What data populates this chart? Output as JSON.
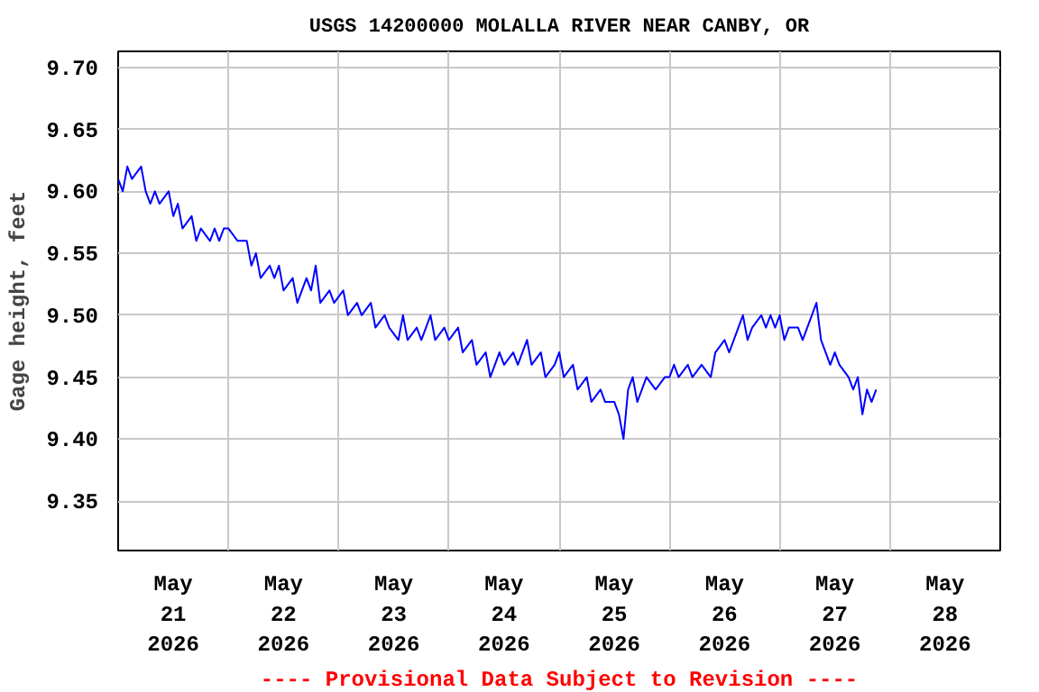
{
  "chart_data": {
    "type": "line",
    "title": "USGS 14200000 MOLALLA RIVER NEAR CANBY, OR",
    "ylabel": "Gage height, feet",
    "annotations": [
      "---- Provisional Data Subject to Revision ----"
    ],
    "x": [
      "2026-05-21T00:00",
      "2026-05-21T01:00",
      "2026-05-21T02:00",
      "2026-05-21T03:00",
      "2026-05-21T05:00",
      "2026-05-21T06:00",
      "2026-05-21T07:00",
      "2026-05-21T08:00",
      "2026-05-21T09:00",
      "2026-05-21T11:00",
      "2026-05-21T12:00",
      "2026-05-21T13:00",
      "2026-05-21T14:00",
      "2026-05-21T16:00",
      "2026-05-21T17:00",
      "2026-05-21T18:00",
      "2026-05-21T20:00",
      "2026-05-21T21:00",
      "2026-05-21T22:00",
      "2026-05-21T23:00",
      "2026-05-22T00:00",
      "2026-05-22T02:00",
      "2026-05-22T04:00",
      "2026-05-22T05:00",
      "2026-05-22T06:00",
      "2026-05-22T07:00",
      "2026-05-22T09:00",
      "2026-05-22T10:00",
      "2026-05-22T11:00",
      "2026-05-22T12:00",
      "2026-05-22T14:00",
      "2026-05-22T15:00",
      "2026-05-22T17:00",
      "2026-05-22T18:00",
      "2026-05-22T19:00",
      "2026-05-22T20:00",
      "2026-05-22T22:00",
      "2026-05-22T23:00",
      "2026-05-23T01:00",
      "2026-05-23T02:00",
      "2026-05-23T04:00",
      "2026-05-23T05:00",
      "2026-05-23T07:00",
      "2026-05-23T08:00",
      "2026-05-23T10:00",
      "2026-05-23T11:00",
      "2026-05-23T13:00",
      "2026-05-23T14:00",
      "2026-05-23T15:00",
      "2026-05-23T17:00",
      "2026-05-23T18:00",
      "2026-05-23T20:00",
      "2026-05-23T21:00",
      "2026-05-23T23:00",
      "2026-05-24T00:00",
      "2026-05-24T02:00",
      "2026-05-24T03:00",
      "2026-05-24T05:00",
      "2026-05-24T06:00",
      "2026-05-24T08:00",
      "2026-05-24T09:00",
      "2026-05-24T11:00",
      "2026-05-24T12:00",
      "2026-05-24T14:00",
      "2026-05-24T15:00",
      "2026-05-24T17:00",
      "2026-05-24T18:00",
      "2026-05-24T20:00",
      "2026-05-24T21:00",
      "2026-05-24T23:00",
      "2026-05-25T00:00",
      "2026-05-25T01:00",
      "2026-05-25T03:00",
      "2026-05-25T04:00",
      "2026-05-25T06:00",
      "2026-05-25T07:00",
      "2026-05-25T09:00",
      "2026-05-25T10:00",
      "2026-05-25T12:00",
      "2026-05-25T13:00",
      "2026-05-25T14:00",
      "2026-05-25T14:30",
      "2026-05-25T15:00",
      "2026-05-25T16:00",
      "2026-05-25T17:00",
      "2026-05-25T18:00",
      "2026-05-25T19:00",
      "2026-05-25T21:00",
      "2026-05-25T23:00",
      "2026-05-26T00:00",
      "2026-05-26T01:00",
      "2026-05-26T02:00",
      "2026-05-26T04:00",
      "2026-05-26T05:00",
      "2026-05-26T07:00",
      "2026-05-26T09:00",
      "2026-05-26T10:00",
      "2026-05-26T12:00",
      "2026-05-26T13:00",
      "2026-05-26T15:00",
      "2026-05-26T16:00",
      "2026-05-26T17:00",
      "2026-05-26T18:00",
      "2026-05-26T20:00",
      "2026-05-26T21:00",
      "2026-05-26T22:00",
      "2026-05-26T23:00",
      "2026-05-27T00:00",
      "2026-05-27T01:00",
      "2026-05-27T02:00",
      "2026-05-27T04:00",
      "2026-05-27T05:00",
      "2026-05-27T06:00",
      "2026-05-27T07:00",
      "2026-05-27T08:00",
      "2026-05-27T09:00",
      "2026-05-27T10:00",
      "2026-05-27T11:00",
      "2026-05-27T12:00",
      "2026-05-27T13:00",
      "2026-05-27T15:00",
      "2026-05-27T16:00",
      "2026-05-27T17:00",
      "2026-05-27T18:00",
      "2026-05-27T19:00",
      "2026-05-27T20:00",
      "2026-05-27T21:00"
    ],
    "series": [
      {
        "color": "#0000ff",
        "values": [
          9.61,
          9.6,
          9.62,
          9.61,
          9.62,
          9.6,
          9.59,
          9.6,
          9.59,
          9.6,
          9.58,
          9.59,
          9.57,
          9.58,
          9.56,
          9.57,
          9.56,
          9.57,
          9.56,
          9.57,
          9.57,
          9.56,
          9.56,
          9.54,
          9.55,
          9.53,
          9.54,
          9.53,
          9.54,
          9.52,
          9.53,
          9.51,
          9.53,
          9.52,
          9.54,
          9.51,
          9.52,
          9.51,
          9.52,
          9.5,
          9.51,
          9.5,
          9.51,
          9.49,
          9.5,
          9.49,
          9.48,
          9.5,
          9.48,
          9.49,
          9.48,
          9.5,
          9.48,
          9.49,
          9.48,
          9.49,
          9.47,
          9.48,
          9.46,
          9.47,
          9.45,
          9.47,
          9.46,
          9.47,
          9.46,
          9.48,
          9.46,
          9.47,
          9.45,
          9.46,
          9.47,
          9.45,
          9.46,
          9.44,
          9.45,
          9.43,
          9.44,
          9.43,
          9.43,
          9.42,
          9.4,
          9.42,
          9.44,
          9.45,
          9.43,
          9.44,
          9.45,
          9.44,
          9.45,
          9.45,
          9.46,
          9.45,
          9.46,
          9.45,
          9.46,
          9.45,
          9.47,
          9.48,
          9.47,
          9.49,
          9.5,
          9.48,
          9.49,
          9.5,
          9.49,
          9.5,
          9.49,
          9.5,
          9.48,
          9.49,
          9.49,
          9.48,
          9.49,
          9.5,
          9.51,
          9.48,
          9.47,
          9.46,
          9.47,
          9.46,
          9.45,
          9.44,
          9.45,
          9.42,
          9.44,
          9.43,
          9.44
        ]
      }
    ],
    "xlim": [
      "2026-05-21T00:00",
      "2026-05-29T00:00"
    ],
    "xticks": [
      {
        "value": "2026-05-21T12:00",
        "label": "May\n21\n2026"
      },
      {
        "value": "2026-05-22T00:00",
        "label": null
      },
      {
        "value": "2026-05-22T12:00",
        "label": "May\n22\n2026"
      },
      {
        "value": "2026-05-23T00:00",
        "label": null
      },
      {
        "value": "2026-05-23T12:00",
        "label": "May\n23\n2026"
      },
      {
        "value": "2026-05-24T00:00",
        "label": null
      },
      {
        "value": "2026-05-24T12:00",
        "label": "May\n24\n2026"
      },
      {
        "value": "2026-05-25T00:00",
        "label": null
      },
      {
        "value": "2026-05-25T12:00",
        "label": "May\n25\n2026"
      },
      {
        "value": "2026-05-26T00:00",
        "label": null
      },
      {
        "value": "2026-05-26T12:00",
        "label": "May\n26\n2026"
      },
      {
        "value": "2026-05-27T00:00",
        "label": null
      },
      {
        "value": "2026-05-27T12:00",
        "label": "May\n27\n2026"
      },
      {
        "value": "2026-05-28T00:00",
        "label": null
      },
      {
        "value": "2026-05-28T12:00",
        "label": "May\n28\n2026"
      }
    ],
    "ylim": [
      9.31,
      9.713
    ],
    "yticks": [
      {
        "value": 9.35,
        "label": "9.35"
      },
      {
        "value": 9.4,
        "label": "9.40"
      },
      {
        "value": 9.45,
        "label": "9.45"
      },
      {
        "value": 9.5,
        "label": "9.50"
      },
      {
        "value": 9.55,
        "label": "9.55"
      },
      {
        "value": 9.6,
        "label": "9.60"
      },
      {
        "value": 9.65,
        "label": "9.65"
      },
      {
        "value": 9.7,
        "label": "9.70"
      }
    ],
    "grid": true,
    "line_style": "solid"
  }
}
